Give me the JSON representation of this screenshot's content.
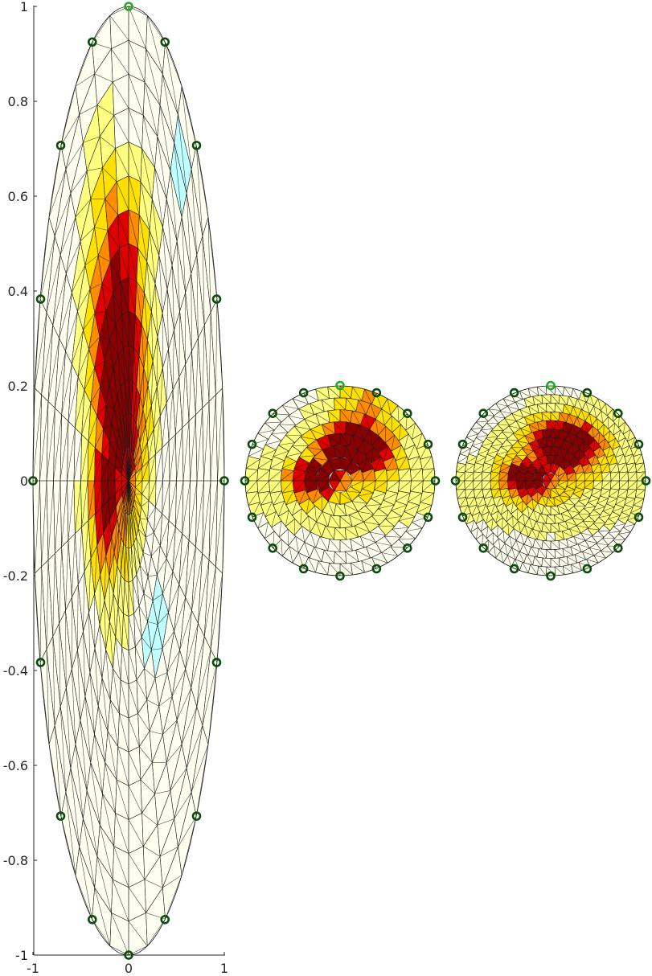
{
  "chart_data": [
    {
      "type": "heatmap",
      "panel": "elongated-ellipse",
      "title": "",
      "xlabel": "",
      "ylabel": "",
      "xlim": [
        -1,
        1
      ],
      "ylim": [
        -1,
        1
      ],
      "xticks": [
        "-1",
        "0",
        "1"
      ],
      "yticks": [
        "1",
        "0.8",
        "0.6",
        "0.4",
        "0.2",
        "0",
        "-0.2",
        "-0.4",
        "-0.6",
        "-0.8",
        "-1"
      ],
      "grid": false,
      "colormap": [
        "#fffff0",
        "#ffff80",
        "#ffe000",
        "#ff8c00",
        "#e00000",
        "#8b0000",
        "#c0ffff"
      ],
      "electrodes": [
        {
          "x": 0.0,
          "y": 1.0,
          "color": "#22aa22"
        },
        {
          "x": 0.38,
          "y": 0.925,
          "color": "#0a4d0a"
        },
        {
          "x": 0.71,
          "y": 0.707,
          "color": "#0a4d0a"
        },
        {
          "x": 0.92,
          "y": 0.383,
          "color": "#0a4d0a"
        },
        {
          "x": 1.0,
          "y": 0.0,
          "color": "#0a4d0a"
        },
        {
          "x": 0.92,
          "y": -0.383,
          "color": "#0a4d0a"
        },
        {
          "x": 0.71,
          "y": -0.707,
          "color": "#0a4d0a"
        },
        {
          "x": 0.38,
          "y": -0.925,
          "color": "#0a4d0a"
        },
        {
          "x": 0.0,
          "y": -1.0,
          "color": "#0a4d0a"
        },
        {
          "x": -0.38,
          "y": -0.925,
          "color": "#0a4d0a"
        },
        {
          "x": -0.71,
          "y": -0.707,
          "color": "#0a4d0a"
        },
        {
          "x": -0.92,
          "y": -0.383,
          "color": "#0a4d0a"
        },
        {
          "x": -1.0,
          "y": 0.0,
          "color": "#0a4d0a"
        },
        {
          "x": -0.92,
          "y": 0.383,
          "color": "#0a4d0a"
        },
        {
          "x": -0.71,
          "y": 0.707,
          "color": "#0a4d0a"
        },
        {
          "x": -0.38,
          "y": 0.925,
          "color": "#0a4d0a"
        }
      ],
      "field_peak": {
        "x": -0.1,
        "y": 0.25,
        "level": 1.0
      },
      "negative_region": {
        "x": 0.25,
        "y": -0.3
      }
    },
    {
      "type": "heatmap",
      "panel": "circle-coarse",
      "title": "",
      "grid": false,
      "electrode_count": 16,
      "first_electrode_color": "#22aa22",
      "electrode_color": "#0a4d0a",
      "field_peak": {
        "x": 0.15,
        "y": 0.35,
        "level": 1.0
      }
    },
    {
      "type": "heatmap",
      "panel": "circle-fine",
      "title": "",
      "grid": false,
      "electrode_count": 16,
      "first_electrode_color": "#22aa22",
      "electrode_color": "#0a4d0a",
      "field_peak": {
        "x": 0.15,
        "y": 0.4,
        "level": 1.0
      }
    }
  ]
}
